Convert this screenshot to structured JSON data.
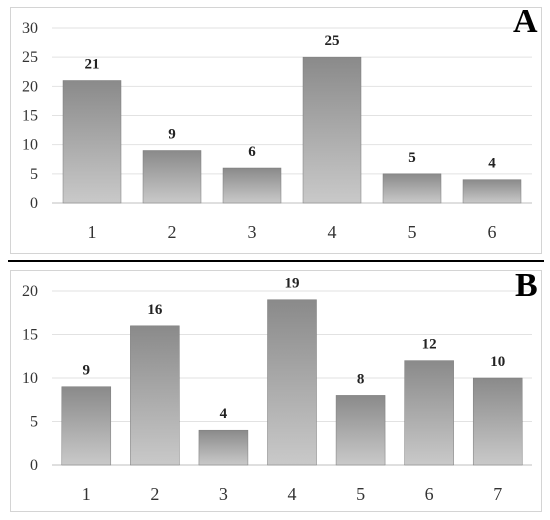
{
  "chart_data": [
    {
      "type": "bar",
      "panel_label": "A",
      "categories": [
        "1",
        "2",
        "3",
        "4",
        "5",
        "6"
      ],
      "values": [
        21,
        9,
        6,
        25,
        5,
        4
      ],
      "data_labels": [
        "21",
        "9",
        "6",
        "25",
        "5",
        "4"
      ],
      "ylim": [
        0,
        30
      ],
      "yticks": [
        0,
        5,
        10,
        15,
        20,
        25,
        30
      ],
      "grid": true,
      "bar_color_top": "#8a8a8a",
      "bar_color_bottom": "#c9c9c9"
    },
    {
      "type": "bar",
      "panel_label": "B",
      "categories": [
        "1",
        "2",
        "3",
        "4",
        "5",
        "6",
        "7"
      ],
      "values": [
        9,
        16,
        4,
        19,
        8,
        12,
        10
      ],
      "data_labels": [
        "9",
        "16",
        "4",
        "19",
        "8",
        "12",
        "10"
      ],
      "ylim": [
        0,
        20
      ],
      "yticks": [
        0,
        5,
        10,
        15,
        20
      ],
      "grid": true,
      "bar_color_top": "#8a8a8a",
      "bar_color_bottom": "#c9c9c9"
    }
  ]
}
